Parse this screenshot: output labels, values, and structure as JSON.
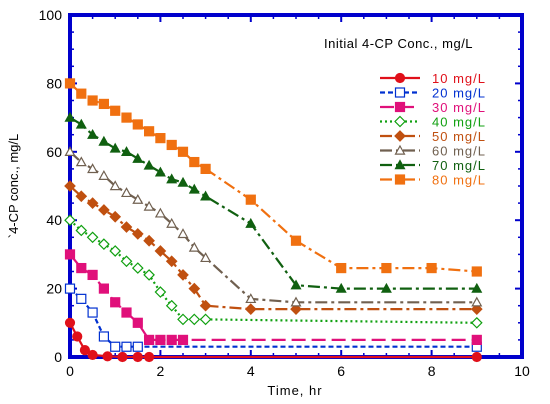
{
  "chart_data": {
    "type": "line",
    "title": "",
    "xlabel": "Time, hr",
    "ylabel": "`4-CP conc., mg/L",
    "xlim": [
      0,
      10
    ],
    "ylim": [
      0,
      100
    ],
    "x_ticks": [
      0,
      2,
      4,
      6,
      8,
      10
    ],
    "y_ticks": [
      0,
      20,
      40,
      60,
      80,
      100
    ],
    "grid": false,
    "legend_title": "Initial 4-CP Conc., mg/L",
    "legend_position": "top-right",
    "frame_color": "#0000CC",
    "series": [
      {
        "name": "10 mg/L",
        "color": "#E0101A",
        "marker": "circle-filled",
        "dash": "solid",
        "points": [
          [
            0,
            10
          ],
          [
            0.16,
            6
          ],
          [
            0.33,
            2
          ],
          [
            0.5,
            0.6
          ],
          [
            0.83,
            0.2
          ],
          [
            1.16,
            0
          ],
          [
            1.5,
            0
          ],
          [
            1.75,
            0
          ],
          [
            9,
            0
          ]
        ]
      },
      {
        "name": "20 mg/L",
        "color": "#0030D0",
        "marker": "square-open",
        "dash": "dash",
        "points": [
          [
            0,
            20
          ],
          [
            0.25,
            17
          ],
          [
            0.5,
            13
          ],
          [
            0.75,
            6
          ],
          [
            1,
            3
          ],
          [
            1.25,
            3
          ],
          [
            1.5,
            3
          ],
          [
            9,
            3
          ]
        ]
      },
      {
        "name": "30 mg/L",
        "color": "#E0107A",
        "marker": "square-filled",
        "dash": "longdash",
        "points": [
          [
            0,
            30
          ],
          [
            0.25,
            26
          ],
          [
            0.5,
            24
          ],
          [
            0.75,
            20
          ],
          [
            1,
            16
          ],
          [
            1.25,
            13
          ],
          [
            1.5,
            10
          ],
          [
            1.75,
            5
          ],
          [
            2,
            5
          ],
          [
            2.25,
            5
          ],
          [
            2.5,
            5
          ],
          [
            9,
            5
          ]
        ]
      },
      {
        "name": "40 mg/L",
        "color": "#10A010",
        "marker": "diamond-open",
        "dash": "dot",
        "points": [
          [
            0,
            40
          ],
          [
            0.25,
            37
          ],
          [
            0.5,
            35
          ],
          [
            0.75,
            33
          ],
          [
            1,
            31
          ],
          [
            1.25,
            28
          ],
          [
            1.5,
            26
          ],
          [
            1.75,
            24
          ],
          [
            2,
            19
          ],
          [
            2.25,
            15
          ],
          [
            2.5,
            11
          ],
          [
            2.75,
            11
          ],
          [
            3,
            11
          ],
          [
            9,
            10
          ]
        ]
      },
      {
        "name": "50 mg/L",
        "color": "#C05010",
        "marker": "diamond-filled",
        "dash": "dashdot",
        "points": [
          [
            0,
            50
          ],
          [
            0.25,
            47
          ],
          [
            0.5,
            45
          ],
          [
            0.75,
            43
          ],
          [
            1,
            41
          ],
          [
            1.25,
            38
          ],
          [
            1.5,
            36
          ],
          [
            1.75,
            34
          ],
          [
            2,
            31
          ],
          [
            2.25,
            28
          ],
          [
            2.5,
            24
          ],
          [
            2.75,
            20
          ],
          [
            3,
            15
          ],
          [
            4,
            14
          ],
          [
            5,
            14
          ],
          [
            9,
            14
          ]
        ]
      },
      {
        "name": "60 mg/L",
        "color": "#706050",
        "marker": "triangle-open",
        "dash": "dashdot",
        "points": [
          [
            0,
            60
          ],
          [
            0.25,
            57
          ],
          [
            0.5,
            55
          ],
          [
            0.75,
            53
          ],
          [
            1,
            50
          ],
          [
            1.25,
            48
          ],
          [
            1.5,
            46
          ],
          [
            1.75,
            44
          ],
          [
            2,
            42
          ],
          [
            2.25,
            39
          ],
          [
            2.5,
            36
          ],
          [
            2.75,
            32
          ],
          [
            3,
            29
          ],
          [
            4,
            17
          ],
          [
            5,
            16
          ],
          [
            9,
            16
          ]
        ]
      },
      {
        "name": "70 mg/L",
        "color": "#106010",
        "marker": "triangle-filled",
        "dash": "dashdot",
        "points": [
          [
            0,
            70
          ],
          [
            0.25,
            68
          ],
          [
            0.5,
            65
          ],
          [
            0.75,
            63
          ],
          [
            1,
            61
          ],
          [
            1.25,
            60
          ],
          [
            1.5,
            58
          ],
          [
            1.75,
            56
          ],
          [
            2,
            54
          ],
          [
            2.25,
            52
          ],
          [
            2.5,
            51
          ],
          [
            2.75,
            49
          ],
          [
            3,
            47
          ],
          [
            4,
            39
          ],
          [
            5,
            21
          ],
          [
            6,
            20
          ],
          [
            7,
            20
          ],
          [
            9,
            20
          ]
        ]
      },
      {
        "name": "80 mg/L",
        "color": "#F07010",
        "marker": "square-filled",
        "dash": "dashdot",
        "points": [
          [
            0,
            80
          ],
          [
            0.25,
            77
          ],
          [
            0.5,
            75
          ],
          [
            0.75,
            74
          ],
          [
            1,
            72
          ],
          [
            1.25,
            70
          ],
          [
            1.5,
            68
          ],
          [
            1.75,
            66
          ],
          [
            2,
            64
          ],
          [
            2.25,
            62
          ],
          [
            2.5,
            60
          ],
          [
            2.75,
            57
          ],
          [
            3,
            55
          ],
          [
            4,
            46
          ],
          [
            5,
            34
          ],
          [
            6,
            26
          ],
          [
            7,
            26
          ],
          [
            8,
            26
          ],
          [
            9,
            25
          ]
        ]
      }
    ]
  }
}
